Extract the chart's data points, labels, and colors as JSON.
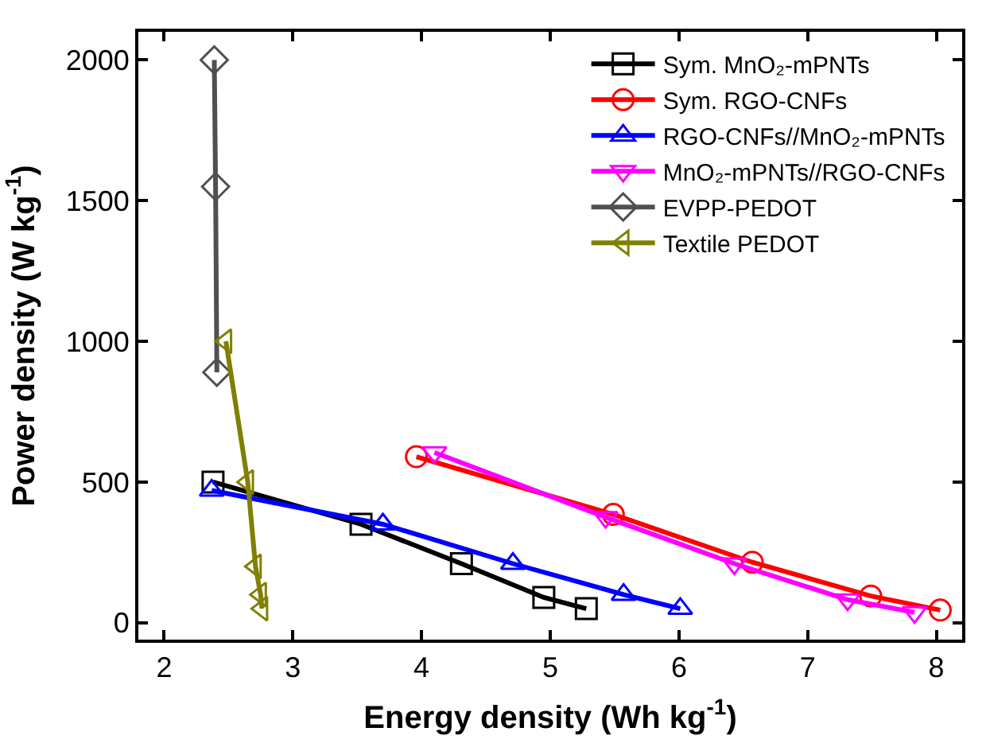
{
  "chart_data": {
    "type": "line",
    "xlabel": "Energy density (Wh kg$^{-1}$)",
    "ylabel": "Power density (W kg$^{-1}$)",
    "xlim": [
      1.8,
      8.2
    ],
    "xticks": [
      2,
      3,
      4,
      5,
      6,
      7,
      8
    ],
    "ylim": [
      -60,
      2100
    ],
    "yticks": [
      0,
      500,
      1000,
      1500,
      2000
    ],
    "legend": "top right",
    "series": [
      {
        "name": "Sym. MnO₂-mPNTs",
        "color": "#000000",
        "marker": "square",
        "x": [
          2.38,
          3.53,
          4.31,
          4.95,
          5.28
        ],
        "values": [
          500,
          350,
          210,
          90,
          50
        ]
      },
      {
        "name": "Sym. RGO-CNFs",
        "color": "#ff0000",
        "marker": "circle",
        "x": [
          3.96,
          5.49,
          6.57,
          7.49,
          8.03
        ],
        "values": [
          590,
          385,
          215,
          95,
          45
        ]
      },
      {
        "name": "RGO-CNFs//MnO₂-mPNTs",
        "color": "#0000ff",
        "marker": "triangle",
        "x": [
          2.37,
          3.7,
          4.71,
          5.57,
          6.01
        ],
        "values": [
          470,
          350,
          210,
          100,
          50
        ]
      },
      {
        "name": "MnO₂-mPNTs//RGO-CNFs",
        "color": "#ff00ff",
        "marker": "triangle-down",
        "x": [
          4.1,
          5.43,
          6.43,
          7.31,
          7.83
        ],
        "values": [
          605,
          375,
          210,
          82,
          37
        ]
      },
      {
        "name": "EVPP-PEDOT",
        "color": "#505050",
        "marker": "diamond",
        "x": [
          2.39,
          2.4,
          2.41
        ],
        "values": [
          2000,
          1550,
          890
        ]
      },
      {
        "name": "Textile PEDOT",
        "color": "#808000",
        "marker": "triangle-left",
        "x": [
          2.48,
          2.65,
          2.71,
          2.75,
          2.76
        ],
        "values": [
          1000,
          500,
          200,
          100,
          50
        ]
      }
    ]
  }
}
